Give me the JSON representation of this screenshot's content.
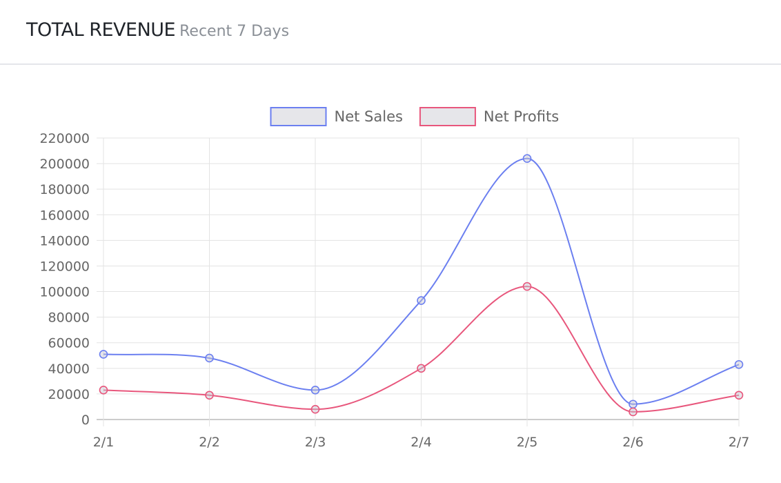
{
  "header": {
    "title": "TOTAL REVENUE",
    "subtitle": "Recent 7 Days"
  },
  "chart_data": {
    "type": "line",
    "categories": [
      "2/1",
      "2/2",
      "2/3",
      "2/4",
      "2/5",
      "2/6",
      "2/7"
    ],
    "series": [
      {
        "name": "Net Sales",
        "color": "#6b7ff0",
        "values": [
          51000,
          48000,
          23000,
          93000,
          204000,
          12000,
          43000
        ]
      },
      {
        "name": "Net Profits",
        "color": "#e8567c",
        "values": [
          23000,
          19000,
          8000,
          40000,
          104000,
          6000,
          19000
        ]
      }
    ],
    "ylim": [
      0,
      220000
    ],
    "y_ticks": [
      0,
      20000,
      40000,
      60000,
      80000,
      100000,
      120000,
      140000,
      160000,
      180000,
      200000,
      220000
    ],
    "grid": true,
    "legend": "top-center",
    "smooth": true
  }
}
